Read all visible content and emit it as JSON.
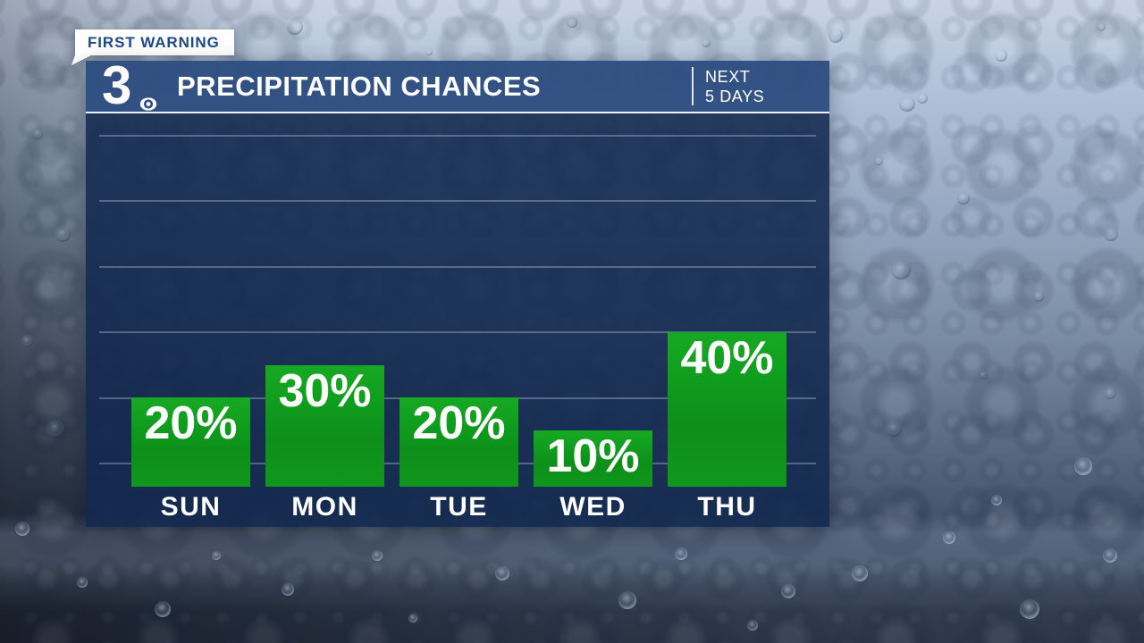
{
  "badge": {
    "label": "FIRST WARNING"
  },
  "header": {
    "station_number": "3",
    "station_icon": "cbs-eye-icon",
    "title": "PRECIPITATION CHANCES",
    "timeframe": {
      "line1": "NEXT",
      "line2": "5 DAYS"
    }
  },
  "chart_data": {
    "type": "bar",
    "title": "PRECIPITATION CHANCES",
    "subtitle": "NEXT 5 DAYS",
    "categories": [
      "SUN",
      "MON",
      "TUE",
      "WED",
      "THU"
    ],
    "values": [
      20,
      30,
      20,
      10,
      40
    ],
    "value_labels": [
      "20%",
      "30%",
      "20%",
      "10%",
      "40%"
    ],
    "unit": "percent",
    "ylim": [
      0,
      100
    ],
    "gridline_values": [
      0,
      20,
      40,
      60,
      80,
      100
    ],
    "grid": "horizontal",
    "legend": "none",
    "bar_color": "#12a120"
  },
  "colors": {
    "header_blue": "#2e4f80",
    "panel_navy": "#152c52",
    "bar_green": "#12a120",
    "badge_text_navy": "#1d4a86",
    "gridline": "#c3d2e4",
    "text_white": "#ffffff"
  }
}
